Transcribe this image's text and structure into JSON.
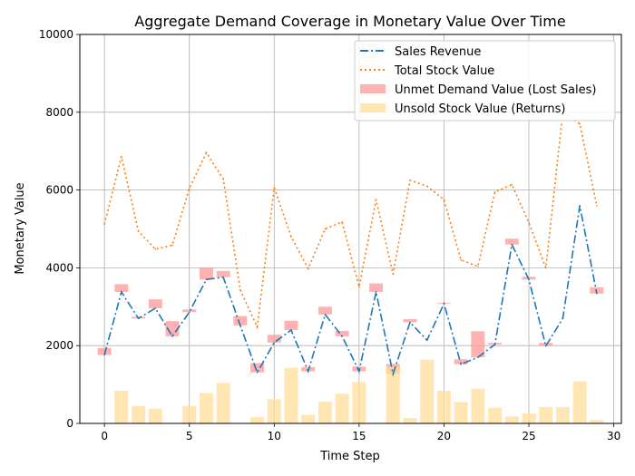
{
  "chart_data": {
    "type": "bar",
    "title": "Aggregate Demand Coverage in Monetary Value Over Time",
    "xlabel": "Time Step",
    "ylabel": "Monetary Value",
    "xlim": [
      -1.45,
      30.45
    ],
    "ylim": [
      0,
      10000
    ],
    "xticks": [
      0,
      5,
      10,
      15,
      20,
      25,
      30
    ],
    "yticks": [
      0,
      2000,
      4000,
      6000,
      8000,
      10000
    ],
    "grid": true,
    "legend_position": "top-right",
    "x": [
      0,
      1,
      2,
      3,
      4,
      5,
      6,
      7,
      8,
      9,
      10,
      11,
      12,
      13,
      14,
      15,
      16,
      17,
      18,
      19,
      20,
      21,
      22,
      23,
      24,
      25,
      26,
      27,
      28,
      29
    ],
    "series": [
      {
        "name": "Sales Revenue",
        "kind": "line",
        "style": "dashdot",
        "color": "#1f77b4",
        "values": [
          1760,
          3380,
          2700,
          2960,
          2240,
          2860,
          3700,
          3760,
          2520,
          1310,
          2080,
          2400,
          1340,
          2800,
          2240,
          1340,
          3380,
          1270,
          2600,
          2140,
          3080,
          1520,
          1700,
          2030,
          4600,
          3700,
          1990,
          2700,
          5600,
          3340
        ]
      },
      {
        "name": "Total Stock Value",
        "kind": "line",
        "style": "dotted",
        "color": "#ff7f0e",
        "values": [
          5120,
          6860,
          4940,
          4480,
          4580,
          6040,
          6960,
          6280,
          3430,
          2480,
          6060,
          4800,
          3980,
          5000,
          5180,
          3510,
          5750,
          3840,
          6250,
          6100,
          5750,
          4200,
          4040,
          5950,
          6140,
          5160,
          4000,
          8000,
          7700,
          5600
        ]
      },
      {
        "name": "Unmet Demand Value (Lost Sales)",
        "kind": "floating_bar",
        "color": "#ff9896",
        "bottom": [
          1760,
          3380,
          2700,
          2960,
          2240,
          2860,
          3700,
          3760,
          2520,
          1310,
          2080,
          2400,
          1340,
          2800,
          2240,
          1340,
          3380,
          1270,
          2600,
          2140,
          3080,
          1520,
          1700,
          2030,
          4600,
          3700,
          1990,
          2700,
          5600,
          3340
        ],
        "values": [
          180,
          200,
          40,
          230,
          390,
          70,
          310,
          160,
          240,
          240,
          200,
          240,
          110,
          200,
          140,
          120,
          220,
          260,
          80,
          0,
          20,
          130,
          670,
          40,
          150,
          70,
          80,
          0,
          0,
          160
        ]
      },
      {
        "name": "Unsold Stock Value (Returns)",
        "kind": "bar",
        "color": "#ffdd99",
        "values": [
          0,
          840,
          450,
          380,
          0,
          450,
          780,
          1040,
          0,
          160,
          620,
          1430,
          220,
          560,
          760,
          1060,
          0,
          1460,
          140,
          1640,
          840,
          550,
          890,
          400,
          180,
          260,
          420,
          420,
          1080,
          90
        ]
      }
    ]
  }
}
